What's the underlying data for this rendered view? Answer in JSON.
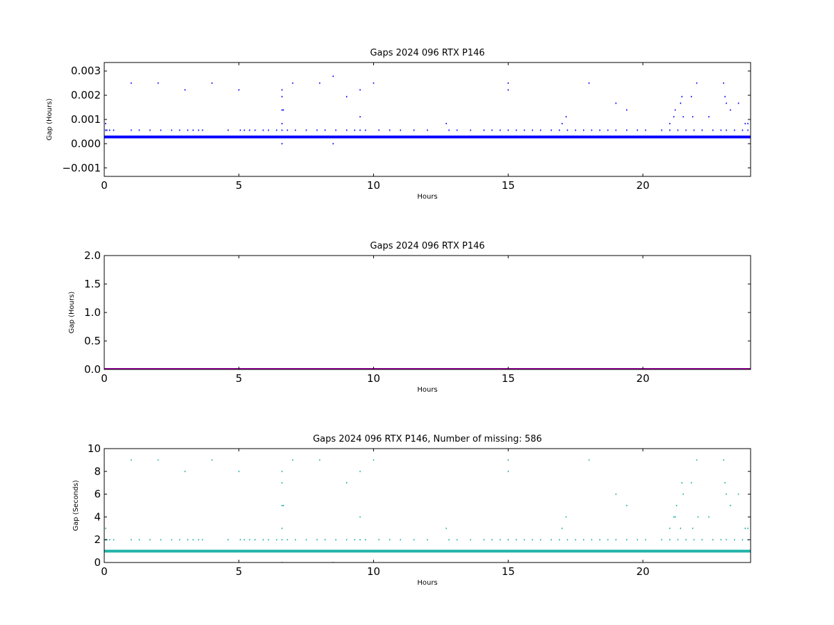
{
  "figure": {
    "background": "#ffffff"
  },
  "chart_data": [
    {
      "type": "scatter",
      "title": "Gaps 2024 096 RTX  P146",
      "xlabel": "Hours",
      "ylabel": "Gap (Hours)",
      "xlim": [
        0,
        24
      ],
      "ylim": [
        -0.00135,
        0.00335
      ],
      "xticks": [
        0,
        5,
        10,
        15,
        20
      ],
      "xtick_labels": [
        "0",
        "5",
        "10",
        "15",
        "20"
      ],
      "yticks": [
        -0.001,
        0.0,
        0.001,
        0.002,
        0.003
      ],
      "ytick_labels": [
        "−0.001",
        "0.000",
        "0.001",
        "0.002",
        "0.003"
      ],
      "grid": false,
      "color": "#0000ff",
      "baseline": {
        "y": 0.000278
      },
      "series": [
        {
          "x": [
            0.05,
            0.1,
            0.2,
            0.35,
            1.0,
            1.3,
            1.7,
            2.1,
            2.5,
            2.8,
            3.1,
            3.3,
            3.5,
            3.65,
            4.6,
            5.05,
            5.2,
            5.4,
            5.6,
            5.9,
            6.1,
            6.4,
            6.6,
            6.8,
            7.1,
            7.5,
            7.9,
            8.2,
            8.6,
            9.0,
            9.3,
            9.5,
            9.7,
            10.2,
            10.6,
            11.0,
            11.5,
            12.0,
            12.8,
            13.1,
            13.6,
            14.1,
            14.4,
            14.7,
            15.0,
            15.3,
            15.6,
            15.9,
            16.2,
            16.6,
            16.9,
            17.2,
            17.5,
            17.8,
            18.1,
            18.4,
            18.7,
            19.0,
            19.4,
            19.8,
            20.1,
            20.7,
            21.0,
            21.3,
            21.6,
            21.9,
            22.2,
            22.6,
            22.9,
            23.1,
            23.4,
            23.7,
            23.9
          ],
          "y": [
            0.000556,
            0.000556,
            0.000556,
            0.000556,
            0.000556,
            0.000556,
            0.000556,
            0.000556,
            0.000556,
            0.000556,
            0.000556,
            0.000556,
            0.000556,
            0.000556,
            0.000556,
            0.000556,
            0.000556,
            0.000556,
            0.000556,
            0.000556,
            0.000556,
            0.000556,
            0.000556,
            0.000556,
            0.000556,
            0.000556,
            0.000556,
            0.000556,
            0.000556,
            0.000556,
            0.000556,
            0.000556,
            0.000556,
            0.000556,
            0.000556,
            0.000556,
            0.000556,
            0.000556,
            0.000556,
            0.000556,
            0.000556,
            0.000556,
            0.000556,
            0.000556,
            0.000556,
            0.000556,
            0.000556,
            0.000556,
            0.000556,
            0.000556,
            0.000556,
            0.000556,
            0.000556,
            0.000556,
            0.000556,
            0.000556,
            0.000556,
            0.000556,
            0.000556,
            0.000556,
            0.000556,
            0.000556,
            0.000556,
            0.000556,
            0.000556,
            0.000556,
            0.000556,
            0.000556,
            0.000556,
            0.000556,
            0.000556,
            0.000556,
            0.000556
          ]
        },
        {
          "x": [
            0.05,
            1.0,
            2.0,
            3.0,
            4.0,
            5.0,
            6.6,
            6.6,
            6.6,
            6.6,
            6.65,
            6.6,
            7.0,
            8.0,
            8.5,
            8.5,
            9.0,
            9.5,
            9.5,
            10.0,
            12.7,
            15.0,
            15.0,
            17.0,
            17.15,
            18.0,
            19.0,
            19.4,
            21.0,
            21.15,
            21.2,
            21.4,
            21.45,
            21.5,
            21.8,
            21.85,
            22.0,
            22.45,
            23.0,
            23.05,
            23.1,
            23.25,
            23.55,
            23.8,
            23.9
          ],
          "y": [
            0.00083,
            0.0025,
            0.0025,
            0.00222,
            0.0025,
            0.00222,
            0.00222,
            0.00194,
            0.00139,
            0.00083,
            0.00139,
            0.0,
            0.0025,
            0.0025,
            0.00278,
            0.0,
            0.00194,
            0.00222,
            0.00111,
            0.0025,
            0.00083,
            0.0025,
            0.00222,
            0.00083,
            0.00111,
            0.0025,
            0.00167,
            0.00139,
            0.00083,
            0.00111,
            0.00139,
            0.00167,
            0.00194,
            0.00111,
            0.00194,
            0.00111,
            0.0025,
            0.00111,
            0.0025,
            0.00194,
            0.00167,
            0.00139,
            0.00167,
            0.00083,
            0.00083
          ]
        }
      ]
    },
    {
      "type": "line",
      "title": "Gaps 2024 096 RTX  P146",
      "xlabel": "Hours",
      "ylabel": "Gap (Hours)",
      "xlim": [
        0,
        24
      ],
      "ylim": [
        0,
        2.0
      ],
      "xticks": [
        0,
        5,
        10,
        15,
        20
      ],
      "xtick_labels": [
        "0",
        "5",
        "10",
        "15",
        "20"
      ],
      "yticks": [
        0.0,
        0.5,
        1.0,
        1.5,
        2.0
      ],
      "ytick_labels": [
        "0.0",
        "0.5",
        "1.0",
        "1.5",
        "2.0"
      ],
      "grid": false,
      "color": "#a000a0",
      "baseline": {
        "y": 0.0003
      },
      "series": []
    },
    {
      "type": "scatter",
      "title": "Gaps 2024 096 RTX  P146, Number of missing: 586",
      "xlabel": "Hours",
      "ylabel": "Gap (Seconds)",
      "xlim": [
        0,
        24
      ],
      "ylim": [
        0,
        10
      ],
      "xticks": [
        0,
        5,
        10,
        15,
        20
      ],
      "xtick_labels": [
        "0",
        "5",
        "10",
        "15",
        "20"
      ],
      "yticks": [
        0,
        2,
        4,
        6,
        8,
        10
      ],
      "ytick_labels": [
        "0",
        "2",
        "4",
        "6",
        "8",
        "10"
      ],
      "grid": false,
      "color": "#20b2aa",
      "baseline": {
        "y": 1.0
      },
      "series": [
        {
          "x": [
            0.05,
            0.1,
            0.2,
            0.35,
            1.0,
            1.3,
            1.7,
            2.1,
            2.5,
            2.8,
            3.1,
            3.3,
            3.5,
            3.65,
            4.6,
            5.05,
            5.2,
            5.4,
            5.6,
            5.9,
            6.1,
            6.4,
            6.6,
            6.8,
            7.1,
            7.5,
            7.9,
            8.2,
            8.6,
            9.0,
            9.3,
            9.5,
            9.7,
            10.2,
            10.6,
            11.0,
            11.5,
            12.0,
            12.8,
            13.1,
            13.6,
            14.1,
            14.4,
            14.7,
            15.0,
            15.3,
            15.6,
            15.9,
            16.2,
            16.6,
            16.9,
            17.2,
            17.5,
            17.8,
            18.1,
            18.4,
            18.7,
            19.0,
            19.4,
            19.8,
            20.1,
            20.7,
            21.0,
            21.3,
            21.6,
            21.9,
            22.2,
            22.6,
            22.9,
            23.1,
            23.4,
            23.7,
            23.9
          ],
          "y": [
            2,
            2,
            2,
            2,
            2,
            2,
            2,
            2,
            2,
            2,
            2,
            2,
            2,
            2,
            2,
            2,
            2,
            2,
            2,
            2,
            2,
            2,
            2,
            2,
            2,
            2,
            2,
            2,
            2,
            2,
            2,
            2,
            2,
            2,
            2,
            2,
            2,
            2,
            2,
            2,
            2,
            2,
            2,
            2,
            2,
            2,
            2,
            2,
            2,
            2,
            2,
            2,
            2,
            2,
            2,
            2,
            2,
            2,
            2,
            2,
            2,
            2,
            2,
            2,
            2,
            2,
            2,
            2,
            2,
            2,
            2,
            2,
            2
          ]
        },
        {
          "x": [
            0.05,
            1.0,
            2.0,
            3.0,
            4.0,
            5.0,
            6.6,
            6.6,
            6.6,
            6.65,
            6.6,
            6.6,
            7.0,
            8.0,
            8.5,
            9.0,
            9.5,
            9.5,
            10.0,
            12.7,
            15.0,
            15.0,
            17.0,
            17.15,
            18.0,
            19.0,
            19.4,
            21.0,
            21.15,
            21.2,
            21.25,
            21.4,
            21.45,
            21.5,
            21.8,
            21.85,
            22.0,
            22.05,
            22.45,
            23.0,
            23.05,
            23.1,
            23.25,
            23.55,
            23.8,
            23.9
          ],
          "y": [
            3,
            9,
            9,
            8,
            9,
            8,
            8,
            7,
            5,
            5,
            3,
            0,
            9,
            9,
            0,
            7,
            8,
            4,
            9,
            3,
            9,
            8,
            3,
            4,
            9,
            6,
            5,
            3,
            4,
            4,
            5,
            3,
            7,
            6,
            7,
            3,
            9,
            4,
            4,
            9,
            7,
            6,
            5,
            6,
            3,
            3
          ]
        }
      ]
    }
  ]
}
